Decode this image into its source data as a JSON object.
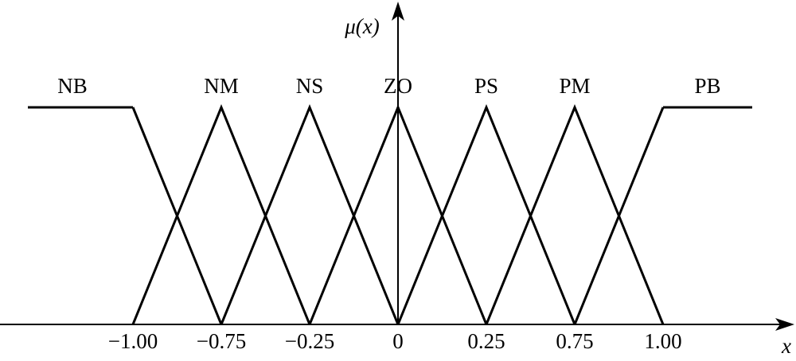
{
  "chart_data": {
    "type": "line",
    "y_label": "μ(x)",
    "x_label": "x",
    "categories": [
      "−1.00",
      "−0.75",
      "−0.25",
      "0",
      "0.25",
      "0.75",
      "1.00"
    ],
    "ylim": [
      0,
      1
    ],
    "color": "#000000",
    "series": [
      {
        "name": "NB",
        "values": [
          1,
          0,
          null,
          null,
          null,
          null,
          null
        ]
      },
      {
        "name": "NM",
        "values": [
          0,
          1,
          0,
          null,
          null,
          null,
          null
        ]
      },
      {
        "name": "NS",
        "values": [
          null,
          0,
          1,
          0,
          null,
          null,
          null
        ]
      },
      {
        "name": "ZO",
        "values": [
          null,
          null,
          0,
          1,
          0,
          null,
          null
        ]
      },
      {
        "name": "PS",
        "values": [
          null,
          null,
          null,
          0,
          1,
          0,
          null
        ]
      },
      {
        "name": "PM",
        "values": [
          null,
          null,
          null,
          null,
          0,
          1,
          0
        ]
      },
      {
        "name": "PB",
        "values": [
          null,
          null,
          null,
          null,
          null,
          0,
          1
        ]
      }
    ]
  }
}
